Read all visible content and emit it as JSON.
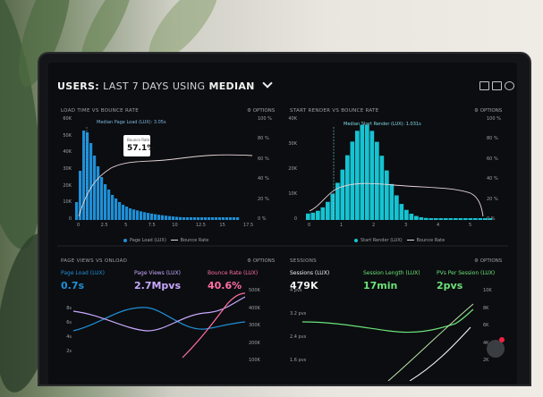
{
  "header": {
    "title_users": "USERS:",
    "title_period": "LAST 7 DAYS",
    "title_using": "USING",
    "title_stat": "MEDIAN"
  },
  "colors": {
    "blue": "#1e90d8",
    "cyan": "#15c4d4",
    "pink": "#ff6fa2",
    "lilac": "#c7a9ff",
    "green": "#6be37a",
    "white": "#f2f2f2"
  },
  "panels": {
    "load": {
      "title": "LOAD TIME VS BOUNCE RATE",
      "options": "OPTIONS",
      "median_label": "Median Page Load (LUX): 3.05s",
      "tooltip_label": "Bounce Rate",
      "tooltip_value": "57.1%",
      "yleft": [
        "60K",
        "50K",
        "40K",
        "30K",
        "20K",
        "10K",
        "0"
      ],
      "yright": [
        "100 %",
        "80 %",
        "60 %",
        "40 %",
        "20 %",
        "0 %"
      ],
      "xticks": [
        "0",
        "2.5",
        "5",
        "7.5",
        "10",
        "12.5",
        "15",
        "17.5"
      ],
      "legend_bar": "Page Load (LUX)",
      "legend_line": "Bounce Rate"
    },
    "render": {
      "title": "START RENDER VS BOUNCE RATE",
      "options": "OPTIONS",
      "median_label": "Median Start Render (LUX): 1.031s",
      "yleft": [
        "40K",
        "30K",
        "20K",
        "10K",
        "0"
      ],
      "yright": [
        "100 %",
        "80 %",
        "60 %",
        "40 %",
        "20 %",
        "0 %"
      ],
      "xticks": [
        "0",
        "1",
        "2",
        "3",
        "4",
        "5"
      ],
      "legend_bar": "Start Render (LUX)",
      "legend_line": "Bounce Rate"
    },
    "pv": {
      "title": "PAGE VIEWS VS ONLOAD",
      "options": "OPTIONS",
      "k1_label": "Page Load (LUX)",
      "k1_value": "0.7s",
      "k2_label": "Page Views (LUX)",
      "k2_value": "2.7Mpvs",
      "k3_label": "Bounce Rate (LUX)",
      "k3_value": "40.6%",
      "yleft": [
        "8s",
        "6s",
        "4s",
        "2s"
      ],
      "yright": [
        "500K",
        "400K",
        "300K",
        "200K",
        "100K"
      ]
    },
    "sessions": {
      "title": "SESSIONS",
      "options": "OPTIONS",
      "k1_label": "Sessions (LUX)",
      "k1_value": "479K",
      "k2_label": "Session Length (LUX)",
      "k2_value": "17min",
      "k3_label": "PVs Per Session (LUX)",
      "k3_value": "2pvs",
      "yleft": [
        "4 pvs",
        "3.2 pvs",
        "2.4 pvs",
        "1.6 pvs"
      ],
      "yright": [
        "10K",
        "8K",
        "6K",
        "4K",
        "2K"
      ]
    }
  }
}
